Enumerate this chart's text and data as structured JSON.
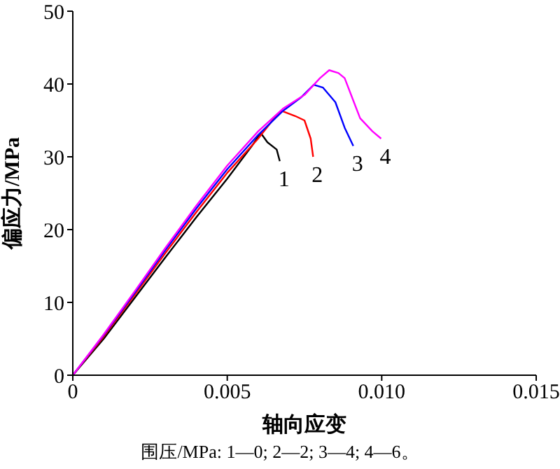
{
  "chart_data": {
    "type": "line",
    "xlabel": "轴向应变",
    "ylabel": "偏应力/MPa",
    "series": [
      {
        "name": "1",
        "color": "#000000",
        "x": [
          0,
          0.001,
          0.002,
          0.003,
          0.004,
          0.005,
          0.0058,
          0.00608,
          0.0063,
          0.0066,
          0.0067
        ],
        "values": [
          0,
          5,
          10.6,
          16.2,
          21.7,
          27,
          31.5,
          33.3,
          32,
          31,
          29.4
        ]
      },
      {
        "name": "2",
        "color": "#ff0000",
        "x": [
          0,
          0.001,
          0.002,
          0.003,
          0.004,
          0.005,
          0.006,
          0.0065,
          0.00676,
          0.0072,
          0.0075,
          0.0077,
          0.00778
        ],
        "values": [
          0,
          5.3,
          11,
          16.8,
          22.4,
          27.8,
          32.5,
          35.2,
          36.3,
          35.6,
          35,
          32.5,
          30
        ]
      },
      {
        "name": "3",
        "color": "#0000ff",
        "x": [
          0,
          0.001,
          0.002,
          0.003,
          0.004,
          0.005,
          0.006,
          0.0068,
          0.0074,
          0.0078,
          0.0081,
          0.0085,
          0.0088,
          0.00908
        ],
        "values": [
          0,
          5.5,
          11.3,
          17.2,
          22.9,
          28.3,
          33,
          36.3,
          38.2,
          39.9,
          39.5,
          37.5,
          34,
          31.5
        ]
      },
      {
        "name": "4",
        "color": "#ff00ff",
        "x": [
          0,
          0.001,
          0.002,
          0.003,
          0.004,
          0.005,
          0.006,
          0.0068,
          0.0075,
          0.008,
          0.0083,
          0.0086,
          0.0088,
          0.0091,
          0.0093,
          0.0097,
          0.00998
        ],
        "values": [
          0,
          5.6,
          11.5,
          17.5,
          23.3,
          28.8,
          33.5,
          36.6,
          38.5,
          40.8,
          41.9,
          41.5,
          40.8,
          37.5,
          35.3,
          33.5,
          32.5
        ]
      }
    ],
    "xlim": [
      0,
      0.015
    ],
    "xticks": [
      0,
      0.005,
      {
        "value": 0.01,
        "label": "0.010"
      },
      0.015
    ],
    "ylim": [
      0,
      50
    ],
    "yticks": [
      0,
      10,
      20,
      30,
      40,
      50
    ],
    "grid": false,
    "legend": false,
    "marker": "none",
    "line_style": "solid",
    "annotations": [
      "围压/MPa: 1—0; 2—2; 3—4; 4—6。"
    ]
  }
}
